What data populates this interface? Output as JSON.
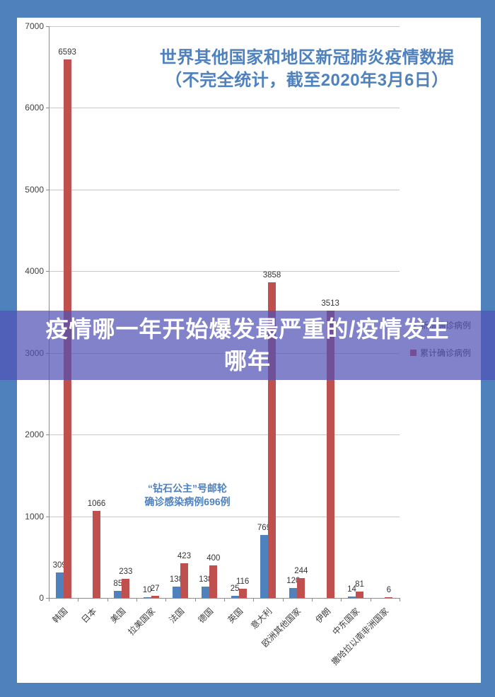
{
  "page": {
    "background_color": "#4F81BD",
    "panel_color": "#FFFFFF"
  },
  "overlay_banner": {
    "text_line1": "疫情哪一年开始爆发最严重的/疫情发生",
    "text_line2": "哪年",
    "background_color": "rgba(80,82,180,0.72)",
    "text_color": "#FFFFFF"
  },
  "chart_data": {
    "type": "bar",
    "title_line1": "世界其他国家和地区新冠肺炎疫情数据",
    "title_line2": "（不完全统计，截至2020年3月6日）",
    "title_color": "#4E81BD",
    "categories": [
      "韩国",
      "日本",
      "美国",
      "拉美国家",
      "法国",
      "德国",
      "英国",
      "意大利",
      "欧洲其他国家",
      "伊朗",
      "中东国家",
      "撒哈拉以南非洲国家"
    ],
    "series": [
      {
        "name": "新增确诊病例",
        "color": "#4F81BD",
        "values": [
          309,
          null,
          85,
          10,
          138,
          138,
          25,
          769,
          120,
          null,
          14,
          null
        ]
      },
      {
        "name": "累计确诊病例",
        "color": "#C0504D",
        "values": [
          6593,
          1066,
          233,
          27,
          423,
          400,
          116,
          3858,
          244,
          3513,
          81,
          6
        ]
      }
    ],
    "ylim": [
      0,
      7000
    ],
    "ytick_interval": 1000,
    "grid": true,
    "legend_position": "right",
    "annotation": {
      "line1": "“钻石公主”号邮轮",
      "line2": "确诊感染病例696例",
      "color": "#4E81BD"
    }
  }
}
